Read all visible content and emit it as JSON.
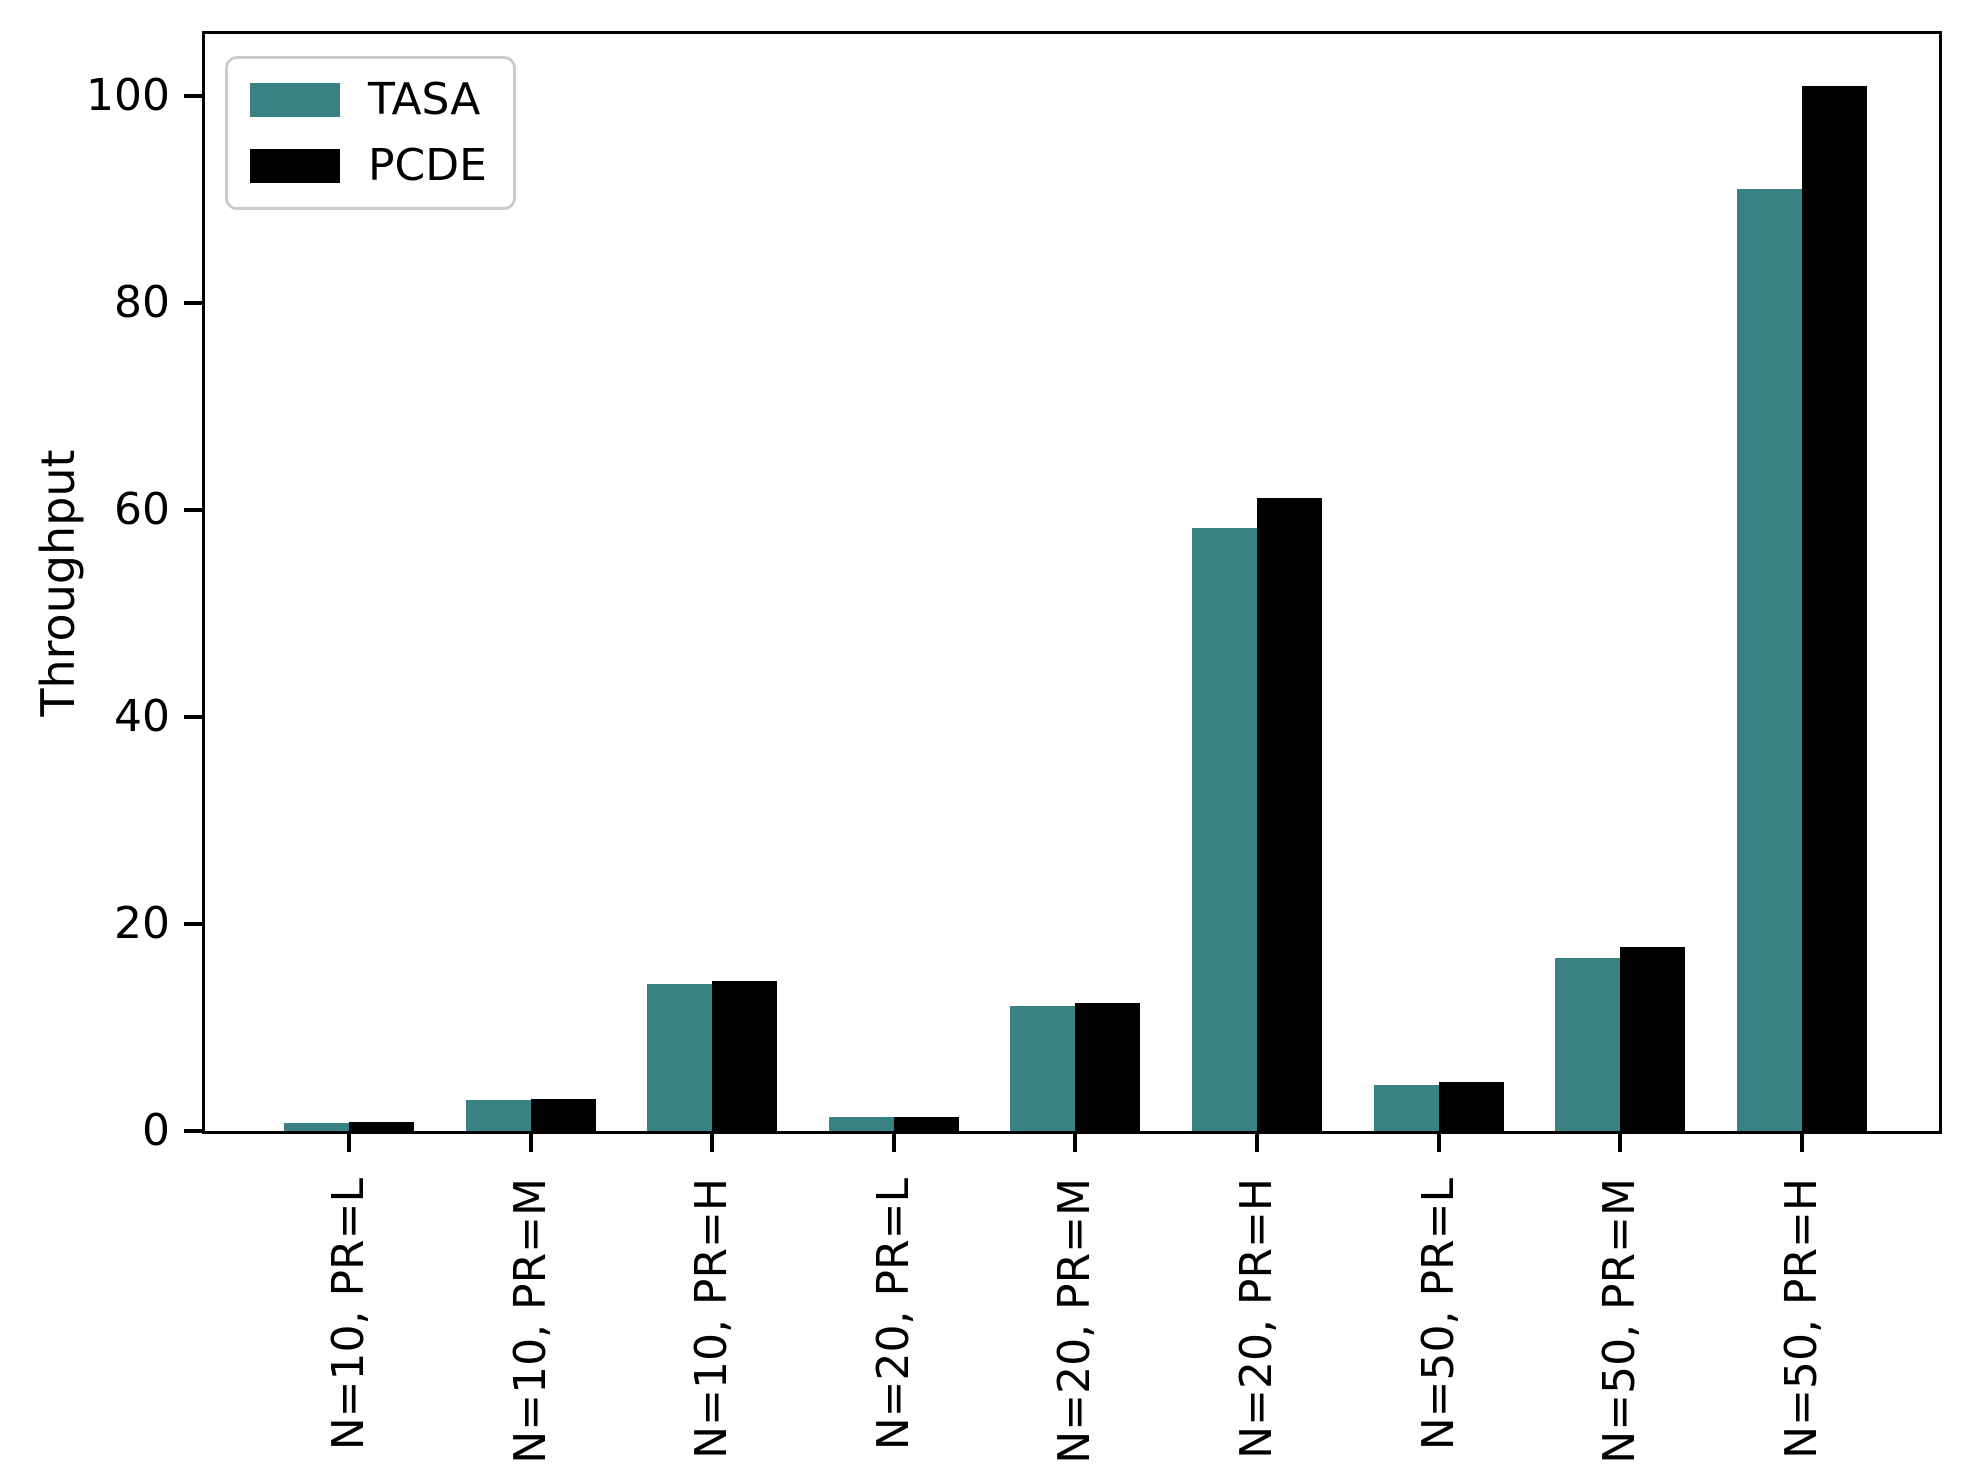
{
  "chart_data": {
    "type": "bar",
    "title": "",
    "xlabel": "",
    "ylabel": "Throughput",
    "categories": [
      "N=10, PR=L",
      "N=10, PR=M",
      "N=10, PR=H",
      "N=20, PR=L",
      "N=20, PR=M",
      "N=20, PR=H",
      "N=50, PR=L",
      "N=50, PR=M",
      "N=50, PR=H"
    ],
    "series": [
      {
        "name": "TASA",
        "color": "#3a8183",
        "values": [
          0.8,
          3.0,
          14.2,
          1.4,
          12.1,
          58.3,
          4.4,
          16.7,
          91.0
        ]
      },
      {
        "name": "PCDE",
        "color": "#000000",
        "values": [
          0.9,
          3.1,
          14.5,
          1.4,
          12.4,
          61.2,
          4.7,
          17.8,
          101.0
        ]
      }
    ],
    "ylim": [
      0,
      106
    ],
    "yticks": [
      0,
      20,
      40,
      60,
      80,
      100
    ],
    "xtick_rotation": 90,
    "grid": false,
    "legend_position": "upper left",
    "bar_colors": {
      "TASA": "#3a8183",
      "PCDE": "#000000"
    },
    "background_color": "#ffffff",
    "axis_color": "#000000"
  }
}
